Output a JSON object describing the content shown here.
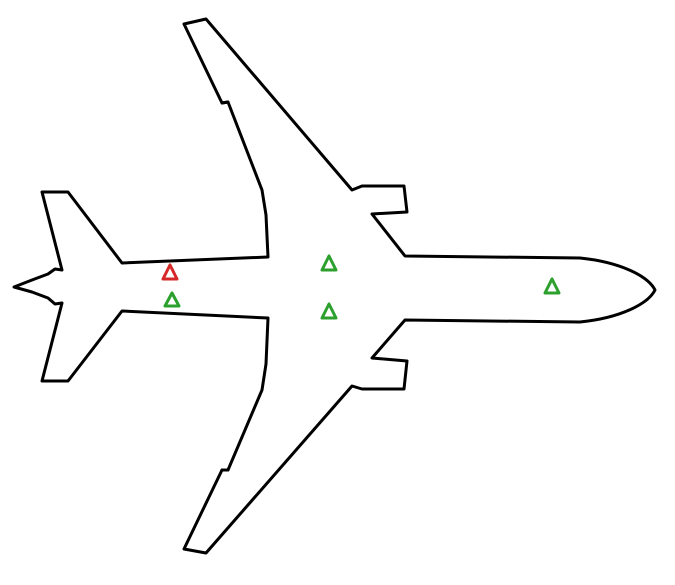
{
  "aircraft": {
    "outline_color": "#000000",
    "fill_color": "#ffffff"
  },
  "markers": [
    {
      "name": "marker-rear-upper",
      "status": "alert",
      "color": "#d62828",
      "icon": "triangle-outline-icon"
    },
    {
      "name": "marker-rear-lower",
      "status": "ok",
      "color": "#2ca02c",
      "icon": "triangle-outline-icon"
    },
    {
      "name": "marker-wing-upper",
      "status": "ok",
      "color": "#2ca02c",
      "icon": "triangle-outline-icon"
    },
    {
      "name": "marker-wing-lower",
      "status": "ok",
      "color": "#2ca02c",
      "icon": "triangle-outline-icon"
    },
    {
      "name": "marker-nose",
      "status": "ok",
      "color": "#2ca02c",
      "icon": "triangle-outline-icon"
    }
  ]
}
